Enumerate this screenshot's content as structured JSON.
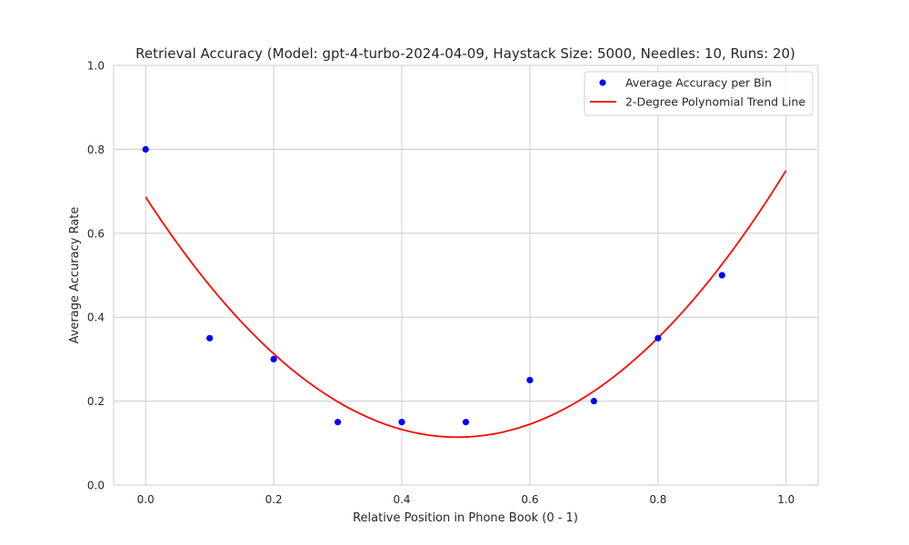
{
  "chart_data": {
    "type": "scatter",
    "title": "Retrieval Accuracy (Model: gpt-4-turbo-2024-04-09, Haystack Size: 5000, Needles: 10, Runs: 20)",
    "xlabel": "Relative Position in Phone Book (0 - 1)",
    "ylabel": "Average Accuracy Rate",
    "xlim": [
      -0.05,
      1.05
    ],
    "ylim": [
      0,
      1.0
    ],
    "xticks": [
      "0.0",
      "0.2",
      "0.4",
      "0.6",
      "0.8",
      "1.0"
    ],
    "yticks": [
      "0.0",
      "0.2",
      "0.4",
      "0.6",
      "0.8",
      "1.0"
    ],
    "grid": true,
    "legend_position": "top-right",
    "series": [
      {
        "name": "Average Accuracy per Bin",
        "kind": "scatter",
        "color": "#0000ff",
        "x": [
          0.0,
          0.1,
          0.2,
          0.3,
          0.4,
          0.5,
          0.6,
          0.7,
          0.8,
          0.9
        ],
        "y": [
          0.8,
          0.35,
          0.3,
          0.15,
          0.15,
          0.15,
          0.25,
          0.2,
          0.35,
          0.5
        ]
      },
      {
        "name": "2-Degree Polynomial Trend Line",
        "kind": "line",
        "color": "#ff0000",
        "polynomial": [
          0.6864,
          -2.3506,
          2.4138
        ],
        "domain": [
          0.0,
          1.0
        ]
      }
    ]
  }
}
